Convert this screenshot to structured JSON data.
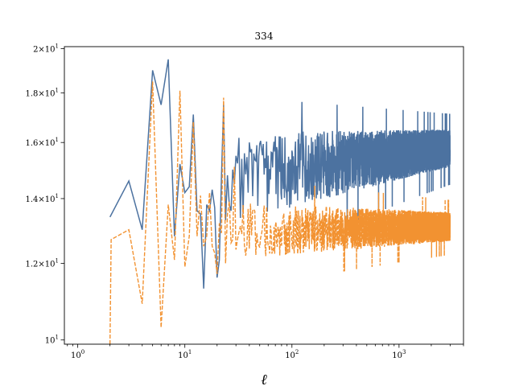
{
  "chart_data": {
    "type": "line",
    "title": "334",
    "xlabel": "ℓ",
    "ylabel": "",
    "xscale": "log",
    "yscale": "log",
    "xlim": [
      0.75,
      4000
    ],
    "ylim": [
      9.9,
      20.1
    ],
    "x_ticks": [
      {
        "value": 1,
        "base": "10",
        "exp": "0"
      },
      {
        "value": 10,
        "base": "10",
        "exp": "1"
      },
      {
        "value": 100,
        "base": "10",
        "exp": "2"
      },
      {
        "value": 1000,
        "base": "10",
        "exp": "3"
      }
    ],
    "y_ticks": [
      {
        "value": 10,
        "base": "10",
        "exp": "1"
      },
      {
        "value": 12,
        "base": "1.2×10",
        "exp": "1"
      },
      {
        "value": 14,
        "base": "1.4×10",
        "exp": "1"
      },
      {
        "value": 16,
        "base": "1.6×10",
        "exp": "1"
      },
      {
        "value": 18,
        "base": "1.8×10",
        "exp": "1"
      },
      {
        "value": 20,
        "base": "2×10",
        "exp": "1"
      }
    ],
    "grid": false,
    "legend": "none",
    "series": [
      {
        "color": "#4c72a0",
        "style": "solid",
        "low_ell_points": [
          [
            2,
            13.4
          ],
          [
            3,
            14.6
          ],
          [
            4,
            13.0
          ],
          [
            5,
            19.0
          ],
          [
            6,
            17.5
          ],
          [
            7,
            19.5
          ],
          [
            8,
            12.8
          ],
          [
            9,
            15.2
          ],
          [
            10,
            14.2
          ],
          [
            11,
            14.4
          ],
          [
            12,
            17.1
          ],
          [
            13,
            13.6
          ],
          [
            14,
            13.5
          ],
          [
            15,
            11.3
          ],
          [
            16,
            13.8
          ],
          [
            17,
            13.6
          ],
          [
            18,
            14.3
          ],
          [
            19,
            13.7
          ],
          [
            20,
            11.6
          ],
          [
            21,
            12.1
          ],
          [
            22,
            14.8
          ],
          [
            23,
            17.5
          ],
          [
            24,
            13.3
          ],
          [
            25,
            14.8
          ],
          [
            26,
            13.8
          ],
          [
            27,
            13.6
          ],
          [
            28,
            15.0
          ],
          [
            29,
            14.5
          ],
          [
            30,
            15.5
          ]
        ],
        "high_ell_band": {
          "from": 30,
          "to": 3000,
          "center_start": 14.8,
          "center_end": 15.8,
          "spread_start": 1.6,
          "spread_end": 0.7
        }
      },
      {
        "color": "#f29231",
        "style": "dashed",
        "low_ell_points": [
          [
            2,
            9.9
          ],
          [
            2.05,
            12.7
          ],
          [
            3,
            13.0
          ],
          [
            4,
            10.9
          ],
          [
            5,
            18.5
          ],
          [
            6,
            10.3
          ],
          [
            7,
            13.8
          ],
          [
            8,
            12.1
          ],
          [
            9,
            18.1
          ],
          [
            10,
            11.9
          ],
          [
            11,
            12.8
          ],
          [
            12,
            16.8
          ],
          [
            13,
            12.8
          ],
          [
            14,
            14.1
          ],
          [
            15,
            12.5
          ],
          [
            16,
            12.8
          ],
          [
            17,
            14.2
          ],
          [
            18,
            12.5
          ],
          [
            19,
            12.3
          ],
          [
            20,
            11.7
          ],
          [
            21,
            13.2
          ],
          [
            22,
            12.9
          ],
          [
            23,
            17.8
          ],
          [
            24,
            12.0
          ],
          [
            25,
            13.5
          ],
          [
            26,
            13.9
          ],
          [
            27,
            12.6
          ],
          [
            28,
            12.7
          ],
          [
            29,
            15.1
          ],
          [
            30,
            12.4
          ]
        ],
        "high_ell_band": {
          "from": 30,
          "to": 3000,
          "center_start": 13.0,
          "center_end": 13.1,
          "spread_start": 0.9,
          "spread_end": 0.45
        }
      }
    ]
  }
}
